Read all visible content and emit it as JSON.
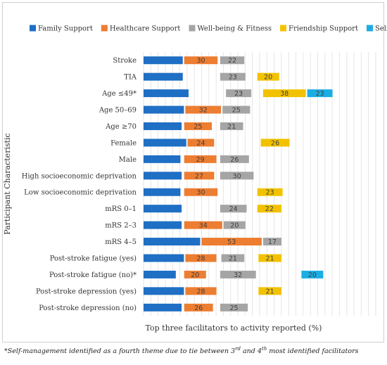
{
  "chart_data": {
    "type": "bar",
    "orientation": "horizontal",
    "ylabel": "Participant Characteristic",
    "xlabel": "Top three facilitators to activity reported (%)",
    "legend_position": "top",
    "grid": true,
    "categories": [
      "Stroke",
      "TIA",
      "Age ≤49*",
      "Age 50–69",
      "Age ≥70",
      "Female",
      "Male",
      "High socioeconomic deprivation",
      "Low socioeconomic deprivation",
      "mRS 0–1",
      "mRS 2–3",
      "mRS 4–5",
      "Post-stroke fatigue (yes)",
      "Post-stroke fatigue (no)*",
      "Post-stroke depression (yes)",
      "Post-stroke depression (no)"
    ],
    "series": [
      {
        "name": "Family Support",
        "color": "#1f6fc4",
        "values": [
          35,
          35,
          40,
          36,
          34,
          38,
          33,
          34,
          33,
          34,
          34,
          50,
          36,
          29,
          36,
          34
        ]
      },
      {
        "name": "Healthcare Support",
        "color": "#ed7d31",
        "values": [
          30,
          null,
          null,
          32,
          25,
          24,
          29,
          27,
          30,
          null,
          34,
          53,
          28,
          20,
          28,
          26
        ]
      },
      {
        "name": "Well-being & Fitness",
        "color": "#a5a5a5",
        "values": [
          22,
          23,
          23,
          25,
          21,
          null,
          26,
          30,
          null,
          24,
          20,
          17,
          21,
          32,
          null,
          25
        ]
      },
      {
        "name": "Friendship Support",
        "color": "#f2c200",
        "values": [
          null,
          20,
          38,
          null,
          null,
          26,
          null,
          null,
          23,
          22,
          null,
          null,
          21,
          null,
          21,
          null
        ]
      },
      {
        "name": "Self-management",
        "color": "#1cade4",
        "values": [
          null,
          null,
          23,
          null,
          null,
          null,
          null,
          null,
          null,
          null,
          null,
          null,
          null,
          20,
          null,
          null
        ]
      }
    ]
  },
  "footnote": {
    "main": "*Self-management identified as a fourth theme due to tie between 3",
    "sup1": "rd",
    "mid": " and 4",
    "sup2": "th",
    "end": " most identified facilitators"
  }
}
